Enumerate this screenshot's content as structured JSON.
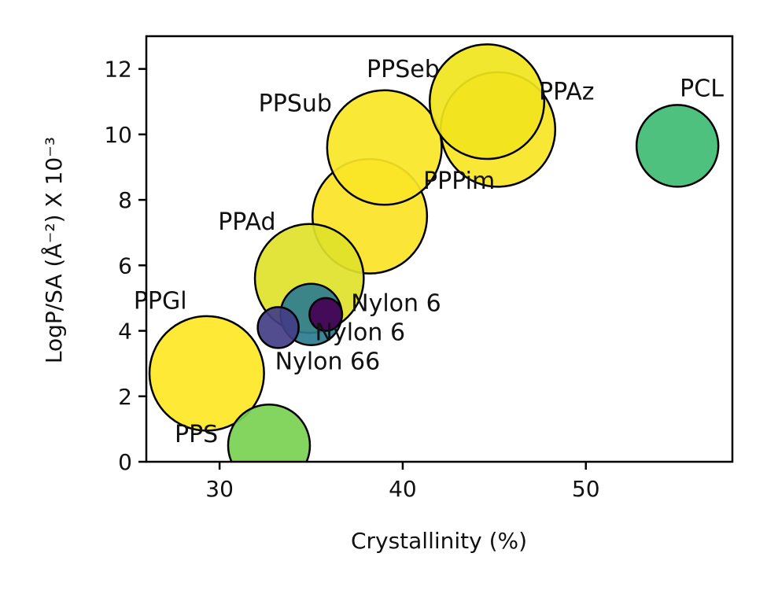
{
  "chart_data": {
    "type": "scatter",
    "xlabel": "Crystallinity (%)",
    "ylabel": "LogP/SA (Å⁻²)  X 10⁻³",
    "xlim": [
      26,
      58
    ],
    "ylim": [
      0,
      13
    ],
    "x_ticks": [
      30,
      40,
      50
    ],
    "y_ticks": [
      0,
      2,
      4,
      6,
      8,
      10,
      12
    ],
    "x_tick_labels": [
      "30",
      "40",
      "50"
    ],
    "y_tick_labels": [
      "0",
      "2",
      "4",
      "6",
      "8",
      "10",
      "12"
    ],
    "grid": false,
    "legend": "none",
    "points": [
      {
        "label": "PPS",
        "x": 32.7,
        "y": 0.5,
        "size": 1.0,
        "color": "#7ad151"
      },
      {
        "label": "PPGl",
        "x": 29.3,
        "y": 2.7,
        "size": 1.4,
        "color": "#fde725"
      },
      {
        "label": "PPAd",
        "x": 34.9,
        "y": 5.6,
        "size": 1.33,
        "color": "#dfe22a"
      },
      {
        "label": "Nylon 6",
        "x": 35.0,
        "y": 4.5,
        "size": 0.75,
        "color": "#2c7c8e"
      },
      {
        "label": "Nylon 66",
        "x": 33.2,
        "y": 4.1,
        "size": 0.5,
        "color": "#433e85"
      },
      {
        "label": "Nylon 6",
        "x": 35.8,
        "y": 4.5,
        "size": 0.4,
        "color": "#440154"
      },
      {
        "label": "PPPim",
        "x": 38.2,
        "y": 7.5,
        "size": 1.4,
        "color": "#fbe426"
      },
      {
        "label": "PPSub",
        "x": 39.0,
        "y": 9.6,
        "size": 1.4,
        "color": "#fae625"
      },
      {
        "label": "PPAz",
        "x": 45.2,
        "y": 10.15,
        "size": 1.4,
        "color": "#f8e524"
      },
      {
        "label": "PPSeb",
        "x": 44.6,
        "y": 11.0,
        "size": 1.4,
        "color": "#f1e51d"
      },
      {
        "label": "PCL",
        "x": 55.0,
        "y": 9.65,
        "size": 1.0,
        "color": "#3fbc73"
      }
    ]
  },
  "label_offsets_note": ""
}
